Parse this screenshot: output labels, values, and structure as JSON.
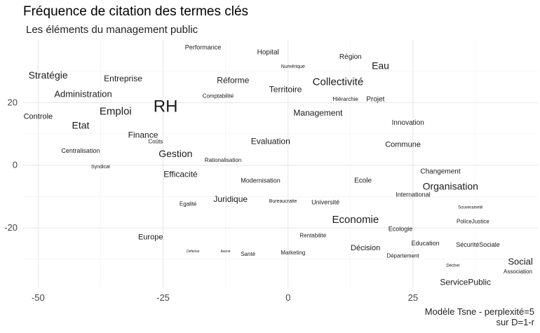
{
  "chart_data": {
    "type": "scatter",
    "title": "Fréquence de citation des termes clés",
    "subtitle": "Les éléments du management public",
    "caption_line1": "Modèle Tsne - perplexité=5",
    "caption_line2": "sur D=1-r",
    "xlabel": "",
    "ylabel": "",
    "xlim": [
      -53,
      50
    ],
    "ylim": [
      -39,
      40
    ],
    "x_ticks": [
      -50,
      -25,
      0,
      25
    ],
    "x_tick_labels": [
      "-50",
      "-25",
      "0",
      "25"
    ],
    "y_ticks": [
      -20,
      0,
      20
    ],
    "y_tick_labels": [
      "-20",
      "0",
      "20"
    ],
    "grid": true,
    "points": [
      {
        "label": "Performance",
        "x": -17,
        "y": 37.5,
        "size": 9
      },
      {
        "label": "Hopital",
        "x": -4,
        "y": 36,
        "size": 10
      },
      {
        "label": "Région",
        "x": 12.5,
        "y": 34.5,
        "size": 10
      },
      {
        "label": "Numérique",
        "x": 1,
        "y": 31.5,
        "size": 7
      },
      {
        "label": "Eau",
        "x": 18.5,
        "y": 31.5,
        "size": 14
      },
      {
        "label": "Stratégie",
        "x": -48,
        "y": 28.5,
        "size": 14
      },
      {
        "label": "Entreprise",
        "x": -33,
        "y": 27.5,
        "size": 12
      },
      {
        "label": "Réforme",
        "x": -11,
        "y": 27,
        "size": 12
      },
      {
        "label": "Collectivité",
        "x": 10,
        "y": 26.5,
        "size": 15
      },
      {
        "label": "Territoire",
        "x": -0.5,
        "y": 24,
        "size": 12
      },
      {
        "label": "Administration",
        "x": -41,
        "y": 22.5,
        "size": 13
      },
      {
        "label": "Comptabilité",
        "x": -14,
        "y": 22,
        "size": 8
      },
      {
        "label": "Hiérarchie",
        "x": 11.5,
        "y": 21,
        "size": 8
      },
      {
        "label": "Projet",
        "x": 17.5,
        "y": 21,
        "size": 10
      },
      {
        "label": "RH",
        "x": -24.5,
        "y": 18.5,
        "size": 24
      },
      {
        "label": "Emploi",
        "x": -34.5,
        "y": 17,
        "size": 15
      },
      {
        "label": "Management",
        "x": 6,
        "y": 16.5,
        "size": 12
      },
      {
        "label": "Controle",
        "x": -50,
        "y": 15.5,
        "size": 11
      },
      {
        "label": "Innovation",
        "x": 24,
        "y": 13.5,
        "size": 10
      },
      {
        "label": "Etat",
        "x": -41.5,
        "y": 12.5,
        "size": 14
      },
      {
        "label": "Finance",
        "x": -29,
        "y": 9.5,
        "size": 12
      },
      {
        "label": "Coûts",
        "x": -26.5,
        "y": 7.5,
        "size": 8
      },
      {
        "label": "Evaluation",
        "x": -3.5,
        "y": 7.5,
        "size": 12
      },
      {
        "label": "Commune",
        "x": 23,
        "y": 6.5,
        "size": 11
      },
      {
        "label": "Centralisation",
        "x": -41.5,
        "y": 4.5,
        "size": 9
      },
      {
        "label": "Gestion",
        "x": -22.5,
        "y": 3.5,
        "size": 14
      },
      {
        "label": "Rationalisation",
        "x": -13,
        "y": 1.5,
        "size": 8
      },
      {
        "label": "Syndicat",
        "x": -37.5,
        "y": -0.5,
        "size": 7
      },
      {
        "label": "Changement",
        "x": 30.5,
        "y": -2,
        "size": 10
      },
      {
        "label": "Efficacité",
        "x": -21.5,
        "y": -3,
        "size": 12
      },
      {
        "label": "Modernisation",
        "x": -5.5,
        "y": -5,
        "size": 9
      },
      {
        "label": "Ecole",
        "x": 15,
        "y": -5,
        "size": 10
      },
      {
        "label": "Organisation",
        "x": 32.5,
        "y": -7,
        "size": 14
      },
      {
        "label": "International",
        "x": 25,
        "y": -9.5,
        "size": 9
      },
      {
        "label": "Juridique",
        "x": -11.5,
        "y": -11,
        "size": 12
      },
      {
        "label": "Bureaucratie",
        "x": -1,
        "y": -11.5,
        "size": 7
      },
      {
        "label": "Université",
        "x": 7.5,
        "y": -12,
        "size": 9
      },
      {
        "label": "Egalité",
        "x": -20,
        "y": -12.5,
        "size": 8
      },
      {
        "label": "Souveraineté",
        "x": 36.5,
        "y": -13.5,
        "size": 6
      },
      {
        "label": "Economie",
        "x": 13.5,
        "y": -17.5,
        "size": 15
      },
      {
        "label": "PoliceJustice",
        "x": 37,
        "y": -18,
        "size": 8
      },
      {
        "label": "Ecologie",
        "x": 22.5,
        "y": -20.5,
        "size": 9
      },
      {
        "label": "Rentabilité",
        "x": 5,
        "y": -22.5,
        "size": 8
      },
      {
        "label": "Europe",
        "x": -27.5,
        "y": -23,
        "size": 11
      },
      {
        "label": "Education",
        "x": 27.5,
        "y": -25,
        "size": 9
      },
      {
        "label": "SécuritéSociale",
        "x": 38,
        "y": -25.5,
        "size": 9
      },
      {
        "label": "Décision",
        "x": 15.5,
        "y": -26.5,
        "size": 11
      },
      {
        "label": "Défense",
        "x": -19,
        "y": -27.5,
        "size": 5
      },
      {
        "label": "Avenir",
        "x": -12.5,
        "y": -27.5,
        "size": 5
      },
      {
        "label": "Santé",
        "x": -8,
        "y": -28.5,
        "size": 8
      },
      {
        "label": "Marketing",
        "x": 1,
        "y": -28,
        "size": 8
      },
      {
        "label": "Département",
        "x": 23,
        "y": -29,
        "size": 8
      },
      {
        "label": "Déchet",
        "x": 33,
        "y": -32,
        "size": 6
      },
      {
        "label": "Social",
        "x": 46.5,
        "y": -31,
        "size": 13
      },
      {
        "label": "Association",
        "x": 46,
        "y": -34,
        "size": 8
      },
      {
        "label": "ServicePublic",
        "x": 35.5,
        "y": -37.5,
        "size": 12
      }
    ]
  }
}
